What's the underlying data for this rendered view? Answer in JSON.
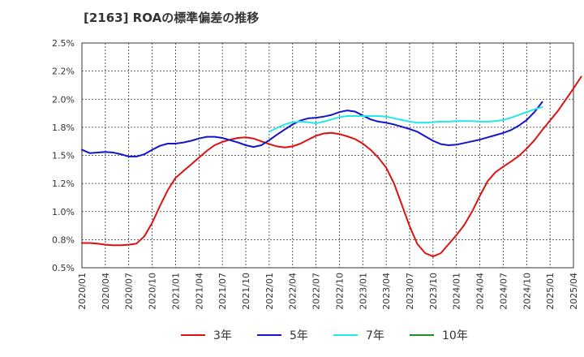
{
  "chart_data": {
    "type": "line",
    "title": "[2163]  ROAの標準偏差の推移",
    "xlabel": "",
    "ylabel": "",
    "ylim": [
      0.5,
      2.5
    ],
    "y_ticks": [
      "0.5%",
      "0.8%",
      "1.0%",
      "1.2%",
      "1.5%",
      "1.8%",
      "2.0%",
      "2.2%",
      "2.5%"
    ],
    "y_tick_values": [
      0.5,
      0.75,
      1.0,
      1.25,
      1.5,
      1.75,
      2.0,
      2.25,
      2.5
    ],
    "x_ticks": [
      "2020/01",
      "2020/04",
      "2020/07",
      "2020/10",
      "2021/01",
      "2021/04",
      "2021/07",
      "2021/10",
      "2022/01",
      "2022/04",
      "2022/07",
      "2022/10",
      "2023/01",
      "2023/04",
      "2023/07",
      "2023/10",
      "2024/01",
      "2024/04",
      "2024/07",
      "2024/10",
      "2025/01",
      "2025/04"
    ],
    "grid": true,
    "legend_position": "bottom",
    "series": [
      {
        "name": "3年",
        "color": "#dd1111",
        "start": "2020/01",
        "values": [
          0.72,
          0.72,
          0.715,
          0.705,
          0.7,
          0.7,
          0.705,
          0.715,
          0.78,
          0.9,
          1.05,
          1.19,
          1.3,
          1.36,
          1.42,
          1.48,
          1.54,
          1.59,
          1.62,
          1.64,
          1.655,
          1.66,
          1.65,
          1.625,
          1.6,
          1.58,
          1.57,
          1.58,
          1.605,
          1.64,
          1.675,
          1.695,
          1.7,
          1.69,
          1.67,
          1.645,
          1.605,
          1.55,
          1.48,
          1.39,
          1.25,
          1.06,
          0.87,
          0.71,
          0.63,
          0.6,
          0.63,
          0.71,
          0.79,
          0.88,
          1.0,
          1.14,
          1.27,
          1.35,
          1.4,
          1.445,
          1.495,
          1.56,
          1.635,
          1.725,
          1.81,
          1.895,
          1.995,
          2.095,
          2.2
        ]
      },
      {
        "name": "5年",
        "color": "#1414c8",
        "start": "2020/01",
        "values": [
          1.55,
          1.52,
          1.525,
          1.53,
          1.525,
          1.51,
          1.49,
          1.49,
          1.51,
          1.55,
          1.585,
          1.605,
          1.605,
          1.615,
          1.63,
          1.65,
          1.665,
          1.665,
          1.655,
          1.635,
          1.615,
          1.59,
          1.575,
          1.59,
          1.635,
          1.685,
          1.73,
          1.775,
          1.81,
          1.83,
          1.835,
          1.845,
          1.86,
          1.885,
          1.9,
          1.89,
          1.855,
          1.82,
          1.8,
          1.79,
          1.775,
          1.755,
          1.735,
          1.71,
          1.67,
          1.63,
          1.6,
          1.59,
          1.595,
          1.61,
          1.625,
          1.64,
          1.66,
          1.68,
          1.7,
          1.725,
          1.765,
          1.815,
          1.885,
          1.975
        ]
      },
      {
        "name": "7年",
        "color": "#22e8e8",
        "start": "2022/01",
        "values": [
          1.71,
          1.745,
          1.775,
          1.795,
          1.8,
          1.795,
          1.785,
          1.8,
          1.82,
          1.84,
          1.85,
          1.85,
          1.85,
          1.85,
          1.85,
          1.845,
          1.83,
          1.815,
          1.8,
          1.79,
          1.79,
          1.795,
          1.8,
          1.8,
          1.805,
          1.805,
          1.805,
          1.8,
          1.8,
          1.805,
          1.815,
          1.835,
          1.86,
          1.885,
          1.91,
          1.93
        ]
      },
      {
        "name": "10年",
        "color": "#228b22",
        "start": "",
        "values": []
      }
    ]
  }
}
